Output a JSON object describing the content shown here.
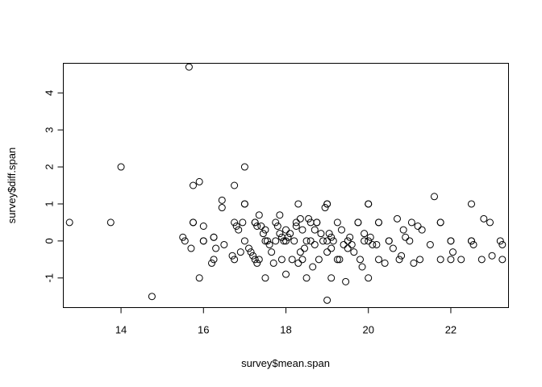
{
  "chart_data": {
    "type": "scatter",
    "title": "",
    "xlabel": "survey$mean.span",
    "ylabel": "survey$diff.span",
    "xlim": [
      12.6,
      23.4
    ],
    "ylim": [
      -1.8,
      4.8
    ],
    "xticks": [
      14,
      16,
      18,
      20,
      22
    ],
    "yticks": [
      -1,
      0,
      1,
      2,
      3,
      4
    ],
    "grid": false,
    "legend": "none",
    "points": [
      [
        12.75,
        0.5
      ],
      [
        13.75,
        0.5
      ],
      [
        14.0,
        2.0
      ],
      [
        14.75,
        -1.5
      ],
      [
        15.5,
        0.1
      ],
      [
        15.55,
        0.0
      ],
      [
        15.65,
        4.7
      ],
      [
        15.7,
        -0.2
      ],
      [
        15.75,
        1.5
      ],
      [
        15.75,
        0.5
      ],
      [
        15.75,
        0.5
      ],
      [
        15.9,
        1.6
      ],
      [
        15.9,
        -1.0
      ],
      [
        16.0,
        0.4
      ],
      [
        16.0,
        0.0
      ],
      [
        16.0,
        0.0
      ],
      [
        16.2,
        -0.6
      ],
      [
        16.25,
        -0.5
      ],
      [
        16.25,
        0.1
      ],
      [
        16.25,
        0.1
      ],
      [
        16.3,
        -0.2
      ],
      [
        16.45,
        1.1
      ],
      [
        16.45,
        0.9
      ],
      [
        16.5,
        -0.1
      ],
      [
        16.7,
        -0.4
      ],
      [
        16.75,
        -0.5
      ],
      [
        16.75,
        1.5
      ],
      [
        16.75,
        0.5
      ],
      [
        16.8,
        0.4
      ],
      [
        16.85,
        0.3
      ],
      [
        16.9,
        -0.3
      ],
      [
        16.95,
        0.5
      ],
      [
        17.0,
        2.0
      ],
      [
        17.0,
        1.0
      ],
      [
        17.0,
        1.0
      ],
      [
        17.0,
        0.0
      ],
      [
        17.1,
        -0.2
      ],
      [
        17.15,
        -0.3
      ],
      [
        17.2,
        -0.4
      ],
      [
        17.25,
        0.5
      ],
      [
        17.25,
        0.5
      ],
      [
        17.25,
        -0.5
      ],
      [
        17.3,
        -0.6
      ],
      [
        17.3,
        0.4
      ],
      [
        17.35,
        0.7
      ],
      [
        17.35,
        -0.5
      ],
      [
        17.4,
        0.4
      ],
      [
        17.45,
        0.2
      ],
      [
        17.5,
        0.3
      ],
      [
        17.5,
        0.0
      ],
      [
        17.5,
        -1.0
      ],
      [
        17.55,
        0.0
      ],
      [
        17.6,
        -0.1
      ],
      [
        17.65,
        -0.3
      ],
      [
        17.7,
        -0.6
      ],
      [
        17.75,
        0.0
      ],
      [
        17.75,
        0.5
      ],
      [
        17.8,
        0.4
      ],
      [
        17.85,
        0.2
      ],
      [
        17.85,
        0.7
      ],
      [
        17.9,
        0.1
      ],
      [
        17.9,
        -0.5
      ],
      [
        17.95,
        0.0
      ],
      [
        18.0,
        -0.9
      ],
      [
        18.0,
        0.3
      ],
      [
        18.0,
        0.0
      ],
      [
        18.05,
        0.1
      ],
      [
        18.1,
        0.2
      ],
      [
        18.15,
        -0.5
      ],
      [
        18.2,
        0.0
      ],
      [
        18.25,
        0.4
      ],
      [
        18.25,
        0.5
      ],
      [
        18.3,
        1.0
      ],
      [
        18.3,
        -0.6
      ],
      [
        18.35,
        0.6
      ],
      [
        18.35,
        -0.3
      ],
      [
        18.4,
        0.3
      ],
      [
        18.4,
        -0.5
      ],
      [
        18.45,
        -0.2
      ],
      [
        18.5,
        0.0
      ],
      [
        18.5,
        -1.0
      ],
      [
        18.55,
        0.6
      ],
      [
        18.6,
        0.5
      ],
      [
        18.6,
        0.0
      ],
      [
        18.65,
        -0.7
      ],
      [
        18.7,
        0.3
      ],
      [
        18.7,
        -0.1
      ],
      [
        18.75,
        0.5
      ],
      [
        18.75,
        0.5
      ],
      [
        18.8,
        -0.5
      ],
      [
        18.85,
        0.2
      ],
      [
        18.9,
        0.0
      ],
      [
        18.95,
        0.9
      ],
      [
        19.0,
        1.0
      ],
      [
        19.0,
        1.0
      ],
      [
        19.0,
        -1.6
      ],
      [
        19.0,
        0.0
      ],
      [
        19.0,
        -0.3
      ],
      [
        19.05,
        0.2
      ],
      [
        19.1,
        -0.2
      ],
      [
        19.1,
        -1.0
      ],
      [
        19.1,
        0.1
      ],
      [
        19.15,
        0.0
      ],
      [
        19.25,
        -0.5
      ],
      [
        19.25,
        0.5
      ],
      [
        19.3,
        -0.5
      ],
      [
        19.35,
        0.3
      ],
      [
        19.4,
        -0.1
      ],
      [
        19.45,
        -1.1
      ],
      [
        19.5,
        0.0
      ],
      [
        19.5,
        -0.2
      ],
      [
        19.55,
        0.1
      ],
      [
        19.6,
        -0.1
      ],
      [
        19.65,
        -0.3
      ],
      [
        19.75,
        0.5
      ],
      [
        19.75,
        0.5
      ],
      [
        19.8,
        -0.5
      ],
      [
        19.85,
        -0.7
      ],
      [
        19.9,
        0.0
      ],
      [
        19.9,
        0.2
      ],
      [
        20.0,
        1.0
      ],
      [
        20.0,
        1.0
      ],
      [
        20.0,
        -1.0
      ],
      [
        20.0,
        0.0
      ],
      [
        20.05,
        0.1
      ],
      [
        20.1,
        -0.1
      ],
      [
        20.2,
        -0.1
      ],
      [
        20.25,
        -0.5
      ],
      [
        20.25,
        0.5
      ],
      [
        20.25,
        0.5
      ],
      [
        20.4,
        -0.6
      ],
      [
        20.5,
        0.0
      ],
      [
        20.5,
        0.0
      ],
      [
        20.6,
        -0.2
      ],
      [
        20.7,
        0.6
      ],
      [
        20.75,
        -0.5
      ],
      [
        20.8,
        -0.4
      ],
      [
        20.85,
        0.3
      ],
      [
        20.9,
        0.1
      ],
      [
        21.0,
        0.0
      ],
      [
        21.05,
        0.5
      ],
      [
        21.1,
        -0.6
      ],
      [
        21.2,
        0.4
      ],
      [
        21.25,
        -0.5
      ],
      [
        21.3,
        0.3
      ],
      [
        21.5,
        -0.1
      ],
      [
        21.6,
        1.2
      ],
      [
        21.75,
        0.5
      ],
      [
        21.75,
        -0.5
      ],
      [
        21.75,
        0.5
      ],
      [
        22.0,
        0.0
      ],
      [
        22.0,
        -0.5
      ],
      [
        22.0,
        0.0
      ],
      [
        22.05,
        -0.3
      ],
      [
        22.25,
        -0.5
      ],
      [
        22.5,
        1.0
      ],
      [
        22.5,
        0.0
      ],
      [
        22.5,
        0.0
      ],
      [
        22.55,
        -0.1
      ],
      [
        22.75,
        -0.5
      ],
      [
        22.8,
        0.6
      ],
      [
        22.95,
        0.5
      ],
      [
        23.0,
        -0.4
      ],
      [
        23.2,
        0.0
      ],
      [
        23.25,
        -0.5
      ],
      [
        23.25,
        -0.1
      ]
    ]
  }
}
